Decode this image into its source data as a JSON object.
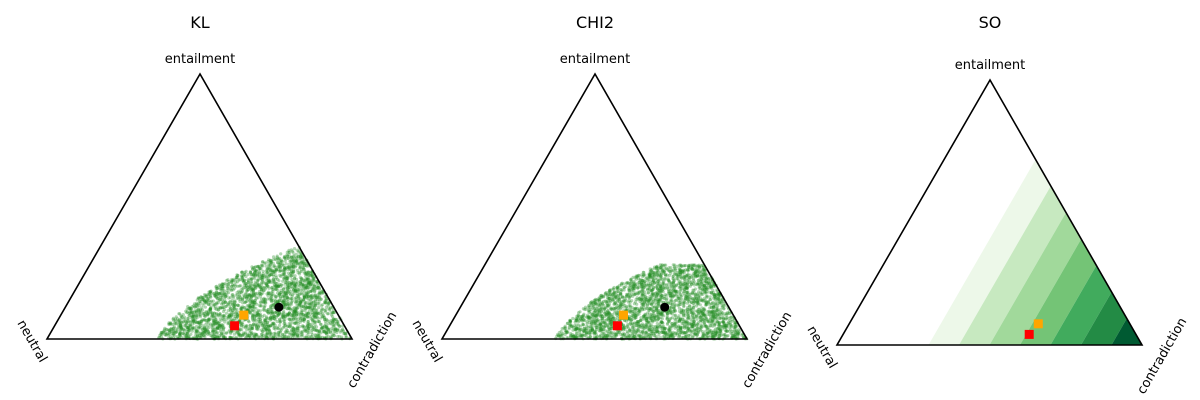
{
  "chart_data": [
    {
      "type": "scatter",
      "title": "KL",
      "vertices": [
        "entailment",
        "neutral",
        "contradiction"
      ],
      "region_color": "#228B22",
      "region_fill": "dense scatter of sampled distributions",
      "points": [
        {
          "marker": "circle",
          "color": "#000000",
          "entailment": 0.12,
          "neutral": 0.18,
          "contradiction": 0.7
        },
        {
          "marker": "square",
          "color": "#FFA500",
          "entailment": 0.09,
          "neutral": 0.31,
          "contradiction": 0.6
        },
        {
          "marker": "square",
          "color": "#FF0000",
          "entailment": 0.05,
          "neutral": 0.36,
          "contradiction": 0.59
        }
      ]
    },
    {
      "type": "scatter",
      "title": "CHI2",
      "vertices": [
        "entailment",
        "neutral",
        "contradiction"
      ],
      "region_color": "#228B22",
      "region_fill": "dense scatter of sampled distributions",
      "points": [
        {
          "marker": "circle",
          "color": "#000000",
          "entailment": 0.12,
          "neutral": 0.21,
          "contradiction": 0.67
        },
        {
          "marker": "square",
          "color": "#FFA500",
          "entailment": 0.09,
          "neutral": 0.36,
          "contradiction": 0.55
        },
        {
          "marker": "square",
          "color": "#FF0000",
          "entailment": 0.05,
          "neutral": 0.4,
          "contradiction": 0.55
        }
      ]
    },
    {
      "type": "heatmap",
      "title": "SO",
      "vertices": [
        "entailment",
        "neutral",
        "contradiction"
      ],
      "bands_by_contradiction": [
        {
          "min": 0.3,
          "max": 0.4,
          "color": "#EDF8E9"
        },
        {
          "min": 0.4,
          "max": 0.5,
          "color": "#C7E9C0"
        },
        {
          "min": 0.5,
          "max": 0.6,
          "color": "#A1D99B"
        },
        {
          "min": 0.6,
          "max": 0.7,
          "color": "#74C476"
        },
        {
          "min": 0.7,
          "max": 0.8,
          "color": "#41AB5D"
        },
        {
          "min": 0.8,
          "max": 0.9,
          "color": "#238B45"
        },
        {
          "min": 0.9,
          "max": 1.0,
          "color": "#005A32"
        }
      ],
      "points": [
        {
          "marker": "square",
          "color": "#FFA500",
          "entailment": 0.08,
          "neutral": 0.3,
          "contradiction": 0.62
        },
        {
          "marker": "square",
          "color": "#FF0000",
          "entailment": 0.04,
          "neutral": 0.35,
          "contradiction": 0.61
        }
      ]
    }
  ]
}
